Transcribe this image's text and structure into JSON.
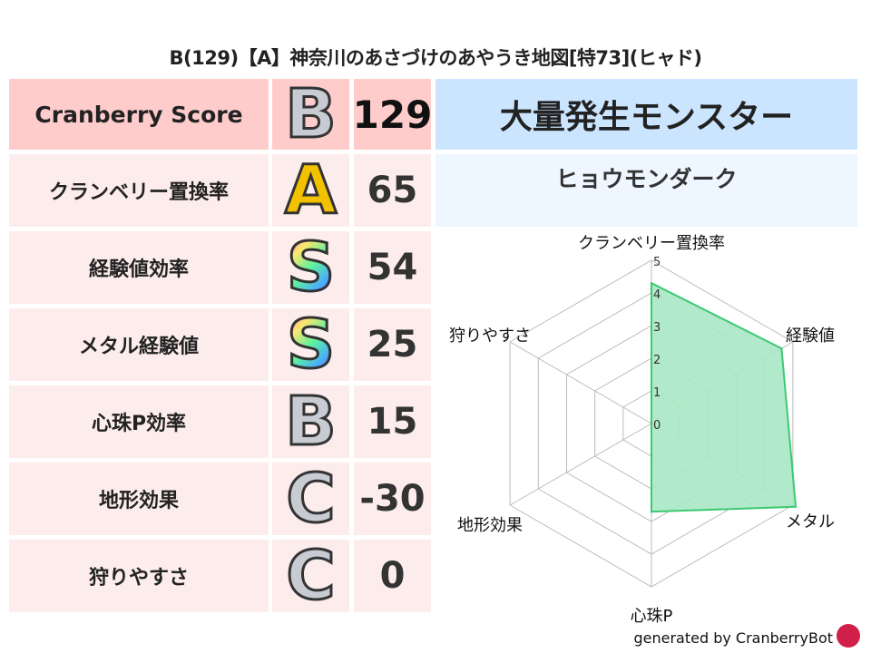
{
  "title": "B(129)【A】神奈川のあさづけのあやうき地図[特73](ヒャド)",
  "score": {
    "label": "Cranberry Score",
    "grade": "B",
    "value": "129"
  },
  "rows": [
    {
      "label": "クランベリー置換率",
      "grade": "A",
      "value": "65"
    },
    {
      "label": "経験値効率",
      "grade": "S",
      "value": "54"
    },
    {
      "label": "メタル経験値",
      "grade": "S",
      "value": "25"
    },
    {
      "label": "心珠P効率",
      "grade": "B",
      "value": "15"
    },
    {
      "label": "地形効果",
      "grade": "C",
      "value": "-30"
    },
    {
      "label": "狩りやすさ",
      "grade": "C",
      "value": "0"
    }
  ],
  "header": {
    "title": "大量発生モンスター",
    "monster": "ヒョウモンダーク"
  },
  "chart_data": {
    "type": "radar",
    "categories": [
      "クランベリー置換率",
      "経験値",
      "メタル",
      "心珠P",
      "地形効果",
      "狩りやすさ"
    ],
    "values": [
      4.3,
      4.6,
      5.1,
      2.7,
      0,
      0
    ],
    "rlim": [
      0,
      5
    ],
    "ticks": [
      "0",
      "1",
      "2",
      "3",
      "4",
      "5"
    ],
    "fill_color": "#a8e8c4",
    "line_color": "#3cc872"
  },
  "footer": "generated by CranberryBot",
  "colors": {
    "label_bg": "#fdecec",
    "score_bg": "#ffcccc",
    "header_bg": "#cce5ff",
    "sub_bg": "#eef6ff"
  }
}
